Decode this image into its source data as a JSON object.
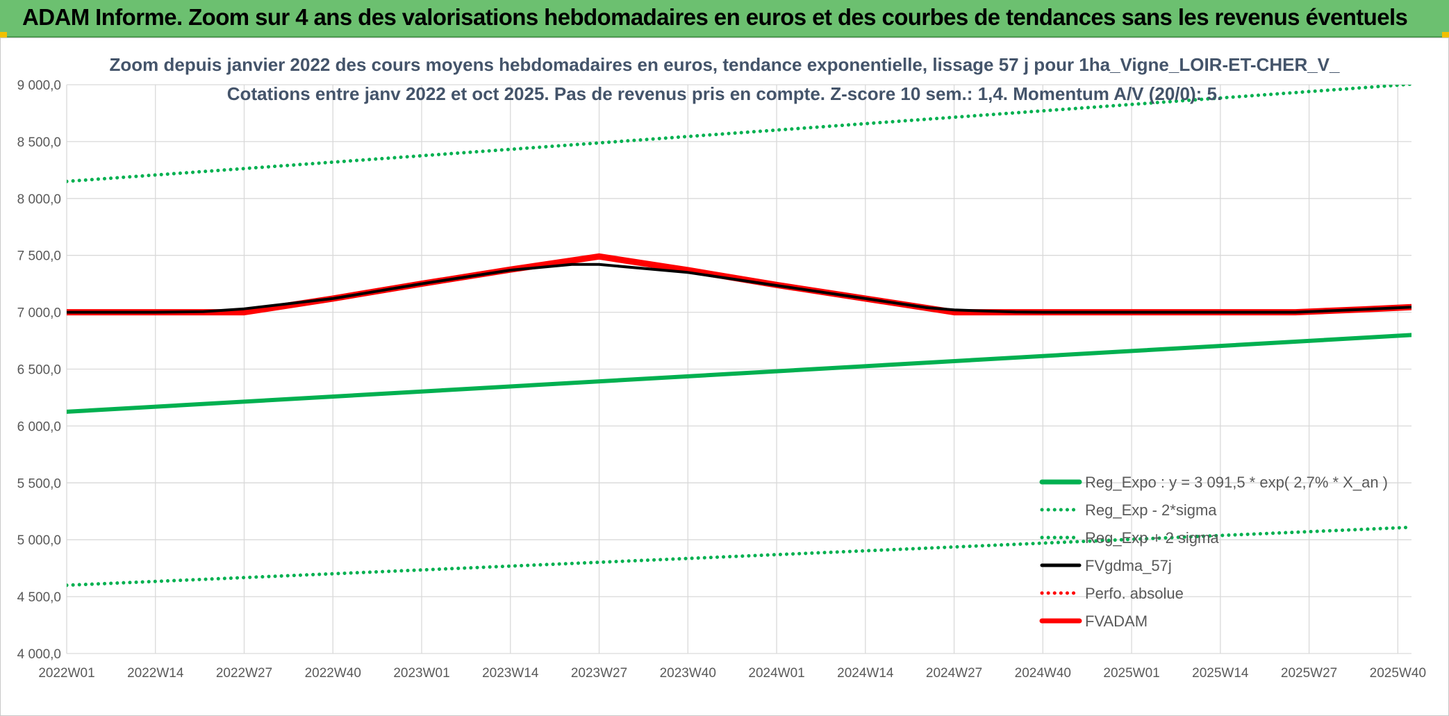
{
  "banner": {
    "title": "ADAM Informe. Zoom sur 4 ans des valorisations hebdomadaires en euros et des courbes de tendances sans les revenus éventuels",
    "background": "#6cc070"
  },
  "chart_data": {
    "type": "line",
    "title_lines": [
      "Zoom depuis janvier 2022 des cours moyens hebdomadaires en euros, tendance exponentielle, lissage 57 j pour 1ha_Vigne_LOIR-ET-CHER_V_",
      "Cotations entre janv 2022 et oct 2025. Pas de revenus pris en compte. Z-score 10 sem.: 1,4. Momentum A/V (20/0): 5."
    ],
    "ylim": [
      4000,
      9000
    ],
    "yticks": [
      4000,
      4500,
      5000,
      5500,
      6000,
      6500,
      7000,
      7500,
      8000,
      8500,
      9000
    ],
    "ytick_labels": [
      "4 000,0",
      "4 500,0",
      "5 000,0",
      "5 500,0",
      "6 000,0",
      "6 500,0",
      "7 000,0",
      "7 500,0",
      "8 000,0",
      "8 500,0",
      "9 000,0"
    ],
    "x_range_weeks": [
      0,
      197
    ],
    "xticks": [
      0,
      13,
      26,
      39,
      52,
      65,
      78,
      91,
      104,
      117,
      130,
      143,
      156,
      169,
      182,
      195
    ],
    "xtick_labels": [
      "2022W01",
      "2022W14",
      "2022W27",
      "2022W40",
      "2023W01",
      "2023W14",
      "2023W27",
      "2023W40",
      "2024W01",
      "2024W14",
      "2024W27",
      "2024W40",
      "2025W01",
      "2025W14",
      "2025W27",
      "2025W40"
    ],
    "grid": true,
    "legend_position": "bottom-right",
    "series": [
      {
        "name": "Reg_Expo : y = 3 091,5 * exp( 2,7% *  X_an )",
        "style": "solid-thick",
        "color": "#00b050",
        "x": [
          0,
          197
        ],
        "y": [
          6125,
          6800
        ]
      },
      {
        "name": "Reg_Exp - 2*sigma",
        "style": "dotted",
        "color": "#00b050",
        "x": [
          0,
          197
        ],
        "y": [
          4600,
          5110
        ]
      },
      {
        "name": "Reg_Exp + 2 sigma",
        "style": "dotted",
        "color": "#00b050",
        "x": [
          0,
          197
        ],
        "y": [
          8150,
          9005
        ]
      },
      {
        "name": "FVgdma_57j",
        "style": "solid",
        "color": "#000000",
        "x": [
          0,
          13,
          20,
          26,
          39,
          52,
          65,
          74,
          78,
          91,
          104,
          117,
          126,
          130,
          139,
          143,
          156,
          169,
          180,
          190,
          197
        ],
        "y": [
          7000,
          7000,
          7005,
          7030,
          7120,
          7250,
          7370,
          7420,
          7420,
          7350,
          7235,
          7120,
          7040,
          7020,
          7002,
          7000,
          7000,
          7000,
          7000,
          7025,
          7045
        ]
      },
      {
        "name": "Perfo. absolue",
        "style": "dotted",
        "color": "#ff0000",
        "x": [],
        "y": []
      },
      {
        "name": "FVADAM",
        "style": "solid-thick",
        "color": "#ff0000",
        "x": [
          0,
          13,
          26,
          39,
          52,
          65,
          78,
          91,
          104,
          117,
          130,
          143,
          156,
          169,
          180,
          190,
          197
        ],
        "y": [
          7000,
          7000,
          7000,
          7120,
          7250,
          7375,
          7490,
          7370,
          7240,
          7120,
          7000,
          7000,
          7000,
          7000,
          7000,
          7025,
          7045
        ]
      }
    ]
  }
}
